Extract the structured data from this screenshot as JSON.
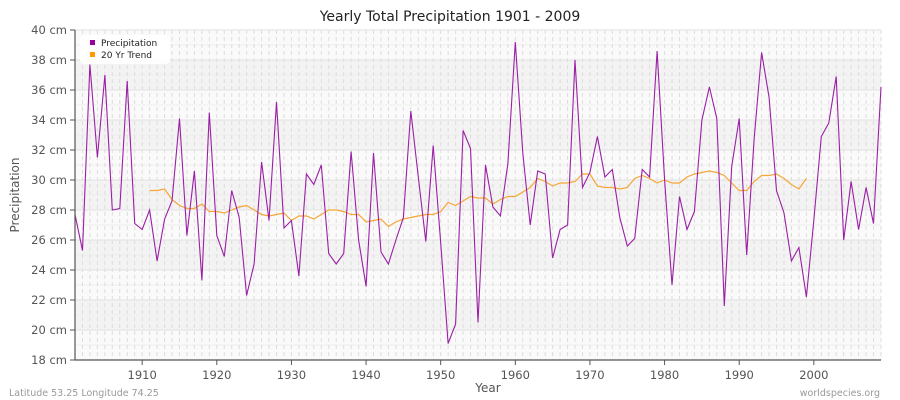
{
  "page": {
    "title": "Yearly Total Precipitation 1901 - 2009",
    "footer_left": "Latitude 53.25 Longitude 74.25",
    "footer_right": "worldspecies.org"
  },
  "legend": {
    "items": [
      {
        "label": "Precipitation",
        "color": "#990099"
      },
      {
        "label": "20 Yr Trend",
        "color": "#ff9900"
      }
    ]
  },
  "colors": {
    "precipitation": "#9b1fa6",
    "trend": "#f7a535",
    "band_dark": "#f3f3f3",
    "band_light": "#fafafa",
    "grid": "#dddddd",
    "axis": "#555555"
  },
  "chart_data": {
    "type": "line",
    "title": "Yearly Total Precipitation 1901 - 2009",
    "xlabel": "Year",
    "ylabel": "Precipitation",
    "xlim": [
      1901,
      2009
    ],
    "ylim": [
      18,
      40
    ],
    "x_ticks": [
      1910,
      1920,
      1930,
      1940,
      1950,
      1960,
      1970,
      1980,
      1990,
      2000
    ],
    "y_ticks": [
      18,
      20,
      22,
      24,
      26,
      28,
      30,
      32,
      34,
      36,
      38,
      40
    ],
    "y_tick_labels": [
      "18 cm",
      "20 cm",
      "22 cm",
      "24 cm",
      "26 cm",
      "28 cm",
      "30 cm",
      "32 cm",
      "34 cm",
      "36 cm",
      "38 cm",
      "40 cm"
    ],
    "grid": true,
    "legend_position": "top-left",
    "series": [
      {
        "name": "Precipitation",
        "x_start": 1901,
        "values": [
          27.7,
          25.3,
          37.7,
          31.5,
          37.0,
          28.0,
          28.1,
          36.6,
          27.1,
          26.7,
          28.0,
          24.6,
          27.4,
          28.6,
          34.1,
          26.3,
          30.6,
          23.3,
          34.5,
          26.3,
          24.9,
          29.3,
          27.5,
          22.3,
          24.4,
          31.2,
          27.3,
          35.2,
          26.8,
          27.3,
          23.6,
          30.4,
          29.7,
          31.0,
          25.1,
          24.4,
          25.1,
          31.9,
          26.0,
          22.9,
          31.8,
          25.2,
          24.4,
          26.0,
          27.5,
          34.6,
          30.2,
          25.9,
          32.3,
          25.8,
          19.1,
          20.4,
          33.3,
          32.1,
          20.5,
          31.0,
          28.2,
          27.6,
          31.1,
          39.2,
          31.8,
          27.0,
          30.6,
          30.4,
          24.8,
          26.7,
          27.0,
          38.0,
          29.5,
          30.5,
          32.9,
          30.2,
          30.7,
          27.5,
          25.6,
          26.1,
          30.7,
          30.2,
          38.6,
          30.0,
          23.0,
          28.9,
          26.7,
          27.9,
          34.0,
          36.2,
          34.1,
          21.6,
          30.9,
          34.1,
          25.0,
          32.7,
          38.5,
          35.5,
          29.3,
          27.8,
          24.6,
          25.5,
          22.2,
          27.3,
          32.9,
          33.8,
          36.9,
          26.0,
          29.9,
          26.7,
          29.5,
          27.1,
          36.2
        ]
      },
      {
        "name": "20 Yr Trend",
        "x_start": 1911,
        "values": [
          29.3,
          29.3,
          29.4,
          28.7,
          28.3,
          28.1,
          28.1,
          28.4,
          27.9,
          27.9,
          27.8,
          28.0,
          28.2,
          28.3,
          28.0,
          27.7,
          27.6,
          27.7,
          27.8,
          27.3,
          27.6,
          27.6,
          27.4,
          27.7,
          28.0,
          28.0,
          27.9,
          27.7,
          27.7,
          27.2,
          27.3,
          27.4,
          26.9,
          27.2,
          27.4,
          27.5,
          27.6,
          27.7,
          27.7,
          27.9,
          28.5,
          28.3,
          28.6,
          28.9,
          28.8,
          28.8,
          28.4,
          28.7,
          28.9,
          28.9,
          29.2,
          29.5,
          30.1,
          29.9,
          29.6,
          29.8,
          29.8,
          29.9,
          30.4,
          30.4,
          29.6,
          29.5,
          29.5,
          29.4,
          29.5,
          30.1,
          30.3,
          30.1,
          29.8,
          30.0,
          29.8,
          29.8,
          30.2,
          30.4,
          30.5,
          30.6,
          30.5,
          30.3,
          29.8,
          29.3,
          29.3,
          29.9,
          30.3,
          30.3,
          30.4,
          30.1,
          29.7,
          29.4,
          30.1
        ]
      }
    ]
  }
}
